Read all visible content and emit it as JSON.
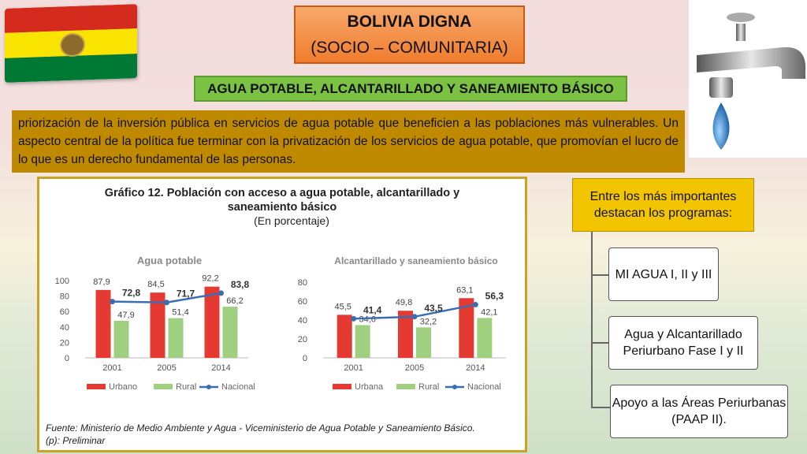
{
  "header": {
    "title_line1": "BOLIVIA DIGNA",
    "title_line2": "(SOCIO – COMUNITARIA)",
    "subtitle": "AGUA POTABLE, ALCANTARILLADO Y SANEAMIENTO BÁSICO"
  },
  "body_text": "priorización de la inversión pública en servicios de agua potable que beneficien a las poblaciones más vulnerables. Un aspecto central de la política fue terminar con la privatización de los servicios de agua potable, que promovían el lucro de lo que es un derecho fundamental de las personas.",
  "colors": {
    "urbano": "#e53a32",
    "rural": "#9fd07f",
    "nacional": "#3b6db3"
  },
  "chart_title_line1": "Gráfico 12. Población con acceso a agua potable, alcantarillado y",
  "chart_title_line2": "saneamiento básico",
  "chart_title_line3": "(En porcentaje)",
  "chart_source_line1": "Fuente: Ministerio de Medio Ambiente y Agua - Viceministerio de Agua Potable y Saneamiento Básico.",
  "chart_source_line2": "(p): Preliminar",
  "chart_data": [
    {
      "type": "bar",
      "title": "Agua potable",
      "categories": [
        "2001",
        "2005",
        "2014"
      ],
      "series": [
        {
          "name": "Urbano",
          "kind": "bar",
          "values": [
            87.9,
            84.5,
            92.2
          ],
          "labels": [
            "87,9",
            "84,5",
            "92,2"
          ]
        },
        {
          "name": "Rural",
          "kind": "bar",
          "values": [
            47.9,
            51.4,
            66.2
          ],
          "labels": [
            "47,9",
            "51,4",
            "66,2"
          ]
        },
        {
          "name": "Nacional",
          "kind": "line",
          "values": [
            72.8,
            71.7,
            83.8
          ],
          "labels": [
            "72,8",
            "71,7",
            "83,8"
          ]
        }
      ],
      "yticks": [
        "0",
        "20",
        "40",
        "60",
        "80",
        "100"
      ],
      "ylim": [
        0,
        100
      ]
    },
    {
      "type": "bar",
      "title": "Alcantarillado y saneamiento básico",
      "categories": [
        "2001",
        "2005",
        "2014"
      ],
      "series": [
        {
          "name": "Urbana",
          "kind": "bar",
          "values": [
            45.5,
            49.8,
            63.1
          ],
          "labels": [
            "45,5",
            "49,8",
            "63,1"
          ]
        },
        {
          "name": "Rural",
          "kind": "bar",
          "values": [
            34.6,
            32.2,
            42.1
          ],
          "labels": [
            "34,6",
            "32,2",
            "42,1"
          ]
        },
        {
          "name": "Nacional",
          "kind": "line",
          "values": [
            41.4,
            43.5,
            56.3
          ],
          "labels": [
            "41,4",
            "43,5",
            "56,3"
          ]
        }
      ],
      "yticks": [
        "0",
        "20",
        "40",
        "60",
        "80"
      ],
      "ylim": [
        0,
        80
      ]
    }
  ],
  "programs": {
    "heading": "Entre los más importantes destacan los programas:",
    "items": [
      "MI AGUA I, II y III",
      "Agua y Alcantarillado Periurbano Fase I y II",
      "Apoyo a las Áreas Periurbanas (PAAP II)."
    ]
  }
}
